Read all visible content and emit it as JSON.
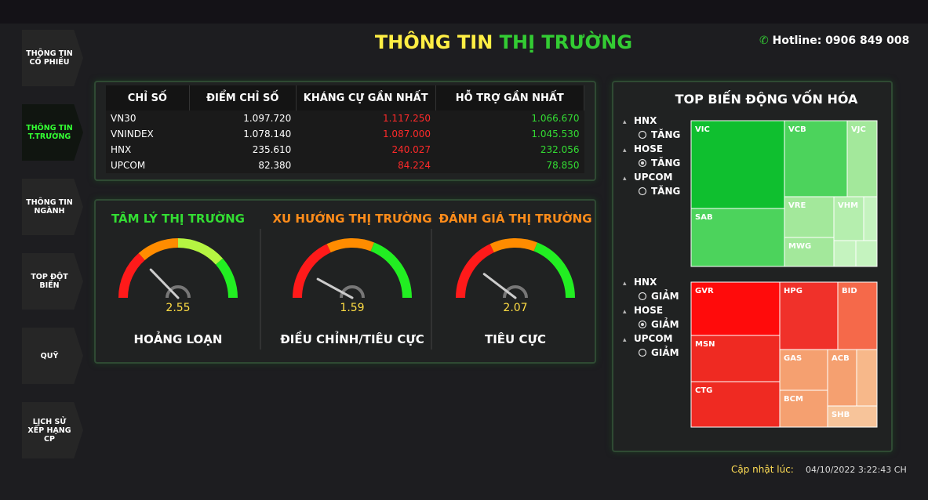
{
  "header": {
    "title_part1": "THÔNG TIN",
    "title_part2": "THỊ TRƯỜNG",
    "hotline": "Hotline: 0906 849 008"
  },
  "sidebar": {
    "items": [
      "THÔNG TIN CỔ PHIẾU",
      "THÔNG TIN T.TRƯỜNG",
      "THÔNG TIN NGÀNH",
      "TOP ĐỘT BIẾN",
      "QUỸ",
      "LỊCH SỬ XẾP HẠNG CP"
    ],
    "active": 1
  },
  "table": {
    "headers": [
      "CHỈ SỐ",
      "ĐIỂM CHỈ SỐ",
      "KHÁNG CỰ GẦN NHẤT",
      "HỖ TRỢ GẦN NHẤT"
    ],
    "rows": [
      [
        "VN30",
        "1.097.720",
        "1.117.250",
        "1.066.670"
      ],
      [
        "VNINDEX",
        "1.078.140",
        "1.087.000",
        "1.045.530"
      ],
      [
        "HNX",
        "235.610",
        "240.027",
        "232.056"
      ],
      [
        "UPCOM",
        "82.380",
        "84.224",
        "78.850"
      ]
    ]
  },
  "gauges": {
    "range": [
      0,
      10
    ],
    "items": [
      {
        "title": "TÂM LÝ THỊ TRƯỜNG",
        "value": 2.55,
        "label": "HOẢNG LOẠN"
      },
      {
        "title": "XU HƯỚNG THỊ TRƯỜNG",
        "value": 1.59,
        "label": "ĐIỀU CHỈNH/TIÊU CỰC"
      },
      {
        "title": "ĐÁNH GIÁ THỊ TRƯỜNG",
        "value": 2.07,
        "label": "TIÊU CỰC"
      }
    ]
  },
  "treemap": {
    "title": "TOP BIẾN ĐỘNG VỐN HÓA",
    "gainers": {
      "filters": [
        {
          "exchange": "HNX",
          "option": "TĂNG"
        },
        {
          "exchange": "HOSE",
          "option": "TĂNG"
        },
        {
          "exchange": "UPCOM",
          "option": "TĂNG"
        }
      ],
      "selected": 1,
      "tiles": [
        "VIC",
        "VCB",
        "VJC",
        "SAB",
        "VRE",
        "VHM",
        "MWG"
      ]
    },
    "losers": {
      "filters": [
        {
          "exchange": "HNX",
          "option": "GIẢM"
        },
        {
          "exchange": "HOSE",
          "option": "GIẢM"
        },
        {
          "exchange": "UPCOM",
          "option": "GIẢM"
        }
      ],
      "selected": 1,
      "tiles": [
        "GVR",
        "HPG",
        "BID",
        "MSN",
        "CTG",
        "GAS",
        "ACB",
        "BCM",
        "SHB"
      ]
    }
  },
  "footer": {
    "label": "Cập nhật lúc:",
    "timestamp": "04/10/2022 3:22:43 CH"
  }
}
